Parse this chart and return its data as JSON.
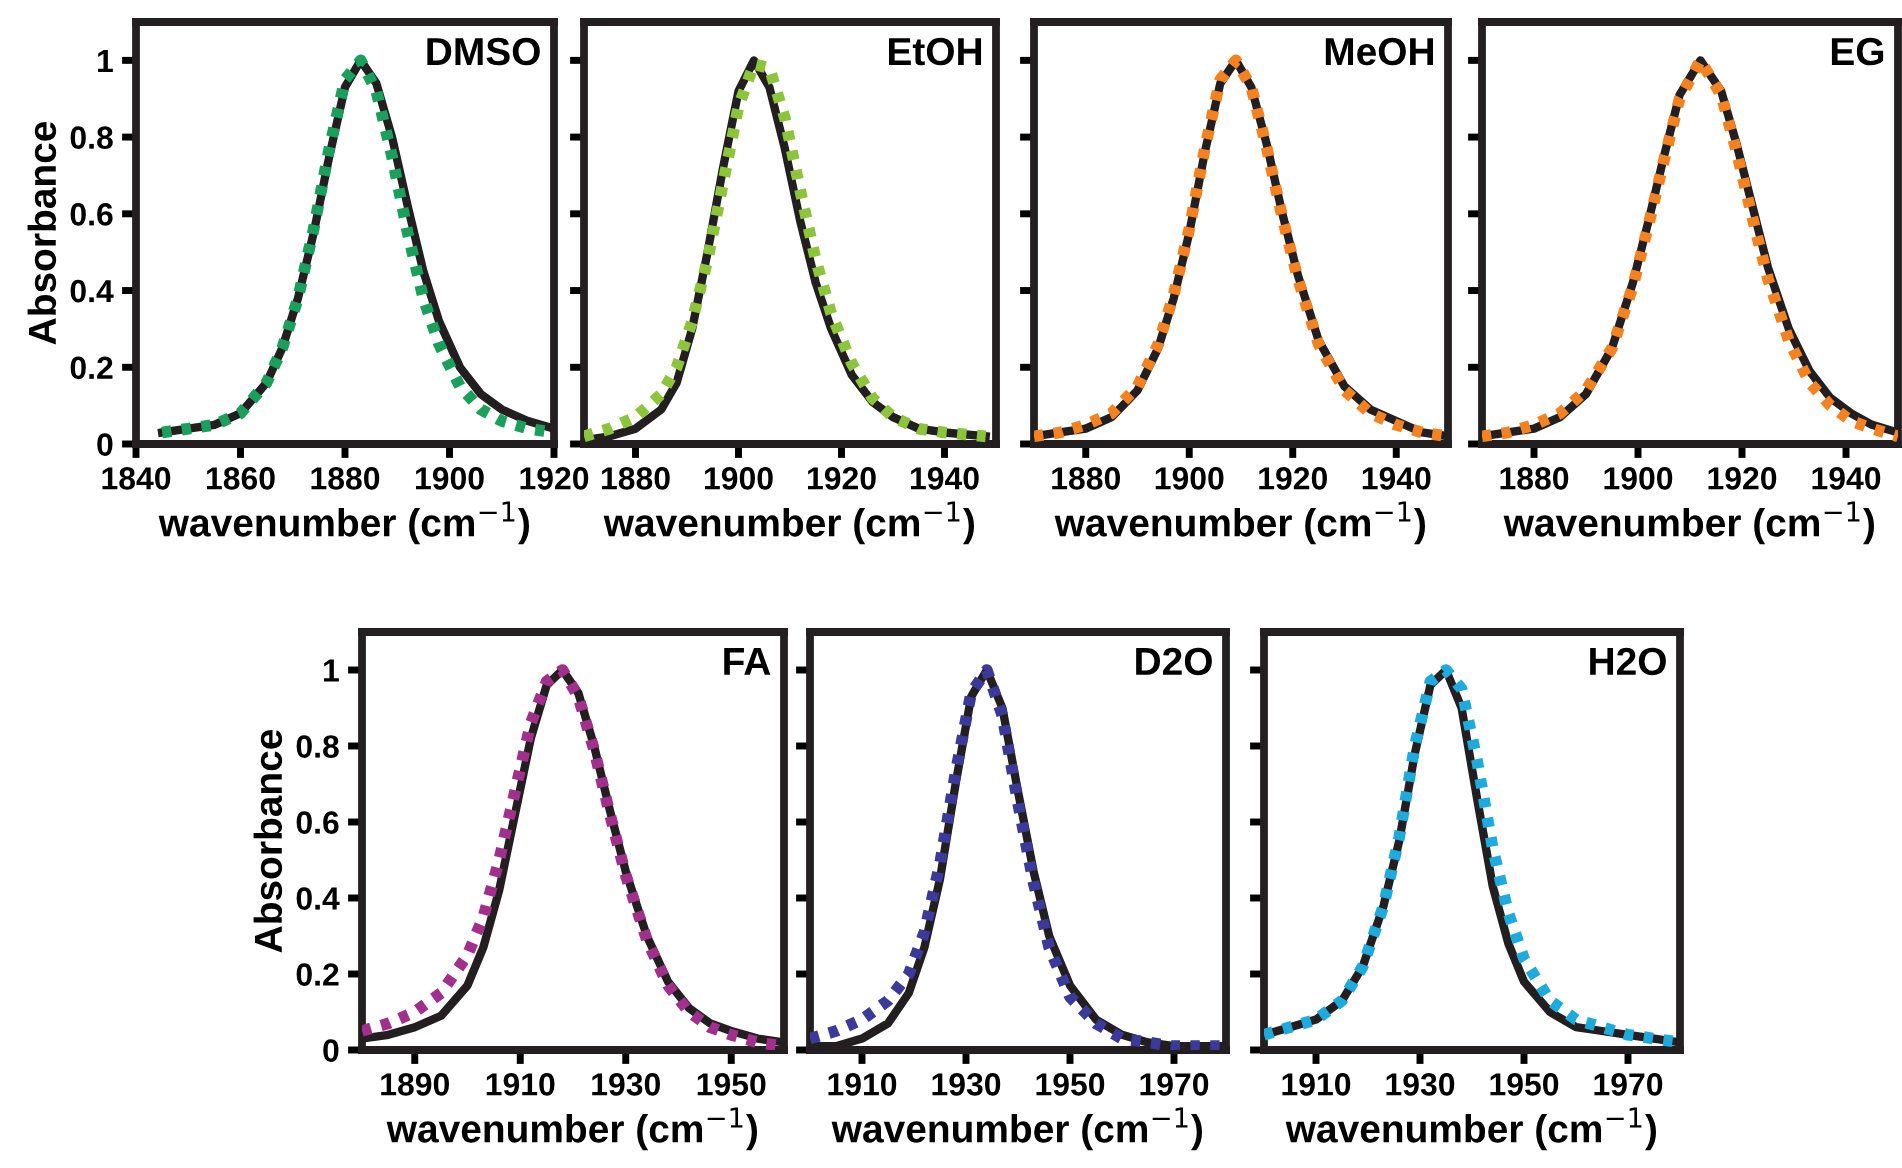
{
  "chart_data": [
    {
      "type": "line",
      "title": "DMSO",
      "xlabel": "wavenumber (cm$^{−1}$)",
      "ylabel": "Absorbance",
      "xlim": [
        1840,
        1920
      ],
      "xticks": [
        1840,
        1860,
        1880,
        1900,
        1920
      ],
      "ylim": [
        0,
        1.1
      ],
      "yticks": [
        0,
        0.2,
        0.4,
        0.6,
        0.8,
        1
      ],
      "x": [
        1845,
        1850,
        1855,
        1860,
        1865,
        1868,
        1871,
        1874,
        1877,
        1880,
        1883,
        1886,
        1889,
        1892,
        1895,
        1898,
        1902,
        1906,
        1910,
        1915,
        1920
      ],
      "series": [
        {
          "color": "#231f20",
          "line_style": "solid",
          "values": [
            0.03,
            0.04,
            0.05,
            0.08,
            0.16,
            0.25,
            0.38,
            0.55,
            0.75,
            0.93,
            1.0,
            0.94,
            0.8,
            0.62,
            0.45,
            0.32,
            0.2,
            0.13,
            0.09,
            0.06,
            0.04
          ]
        },
        {
          "color": "#1aa05a",
          "line_style": "dotted",
          "values": [
            0.03,
            0.04,
            0.05,
            0.08,
            0.16,
            0.25,
            0.38,
            0.56,
            0.77,
            0.95,
            1.0,
            0.92,
            0.75,
            0.55,
            0.38,
            0.26,
            0.15,
            0.09,
            0.06,
            0.04,
            0.03
          ]
        }
      ]
    },
    {
      "type": "line",
      "title": "EtOH",
      "xlabel": "wavenumber (cm$^{−1}$)",
      "xlim": [
        1870,
        1950
      ],
      "xticks": [
        1880,
        1900,
        1920,
        1940
      ],
      "ylim": [
        0,
        1.1
      ],
      "yticks": [
        0,
        0.2,
        0.4,
        0.6,
        0.8,
        1
      ],
      "tick_labels": "x",
      "x": [
        1870,
        1875,
        1880,
        1885,
        1888,
        1891,
        1894,
        1897,
        1900,
        1903,
        1906,
        1909,
        1912,
        1915,
        1918,
        1922,
        1926,
        1930,
        1935,
        1940,
        1948
      ],
      "series": [
        {
          "color": "#231f20",
          "line_style": "solid",
          "values": [
            0.01,
            0.02,
            0.04,
            0.09,
            0.16,
            0.3,
            0.5,
            0.72,
            0.92,
            1.0,
            0.93,
            0.77,
            0.58,
            0.42,
            0.3,
            0.18,
            0.11,
            0.07,
            0.04,
            0.03,
            0.02
          ]
        },
        {
          "color": "#8cc43c",
          "line_style": "dotted",
          "values": [
            0.02,
            0.04,
            0.07,
            0.13,
            0.2,
            0.32,
            0.48,
            0.68,
            0.88,
            0.99,
            0.98,
            0.85,
            0.66,
            0.48,
            0.34,
            0.21,
            0.12,
            0.07,
            0.04,
            0.03,
            0.02
          ]
        }
      ]
    },
    {
      "type": "line",
      "title": "MeOH",
      "xlabel": "wavenumber (cm$^{−1}$)",
      "xlim": [
        1870,
        1950
      ],
      "xticks": [
        1880,
        1900,
        1920,
        1940
      ],
      "ylim": [
        0,
        1.1
      ],
      "yticks": [
        0,
        0.2,
        0.4,
        0.6,
        0.8,
        1
      ],
      "tick_labels": "x",
      "x": [
        1870,
        1875,
        1880,
        1885,
        1890,
        1894,
        1897,
        1900,
        1903,
        1906,
        1909,
        1912,
        1915,
        1918,
        1921,
        1925,
        1930,
        1935,
        1940,
        1945,
        1950
      ],
      "series": [
        {
          "color": "#231f20",
          "line_style": "solid",
          "values": [
            0.02,
            0.03,
            0.04,
            0.07,
            0.14,
            0.25,
            0.38,
            0.55,
            0.76,
            0.94,
            1.0,
            0.93,
            0.78,
            0.6,
            0.44,
            0.27,
            0.15,
            0.09,
            0.06,
            0.03,
            0.02
          ]
        },
        {
          "color": "#f58220",
          "line_style": "dotted",
          "values": [
            0.02,
            0.03,
            0.05,
            0.08,
            0.15,
            0.26,
            0.39,
            0.56,
            0.77,
            0.95,
            1.0,
            0.93,
            0.77,
            0.59,
            0.43,
            0.26,
            0.14,
            0.08,
            0.05,
            0.03,
            0.02
          ]
        }
      ]
    },
    {
      "type": "line",
      "title": "EG",
      "xlabel": "wavenumber (cm$^{−1}$)",
      "xlim": [
        1870,
        1950
      ],
      "xticks": [
        1880,
        1900,
        1920,
        1940
      ],
      "ylim": [
        0,
        1.1
      ],
      "yticks": [
        0,
        0.2,
        0.4,
        0.6,
        0.8,
        1
      ],
      "tick_labels": "x",
      "x": [
        1870,
        1875,
        1880,
        1885,
        1890,
        1895,
        1899,
        1902,
        1905,
        1908,
        1912,
        1916,
        1919,
        1922,
        1925,
        1929,
        1933,
        1937,
        1941,
        1945,
        1950
      ],
      "series": [
        {
          "color": "#231f20",
          "line_style": "solid",
          "values": [
            0.02,
            0.03,
            0.04,
            0.07,
            0.13,
            0.25,
            0.42,
            0.58,
            0.75,
            0.91,
            1.0,
            0.92,
            0.78,
            0.62,
            0.46,
            0.3,
            0.19,
            0.12,
            0.08,
            0.05,
            0.03
          ]
        },
        {
          "color": "#f58220",
          "line_style": "dotted",
          "values": [
            0.02,
            0.03,
            0.05,
            0.08,
            0.14,
            0.25,
            0.41,
            0.57,
            0.74,
            0.9,
            1.0,
            0.91,
            0.76,
            0.59,
            0.43,
            0.27,
            0.16,
            0.1,
            0.06,
            0.04,
            0.02
          ]
        }
      ]
    },
    {
      "type": "line",
      "title": "FA",
      "xlabel": "wavenumber (cm$^{−1}$)",
      "ylabel": "Absorbance",
      "xlim": [
        1880,
        1960
      ],
      "xticks": [
        1890,
        1910,
        1930,
        1950
      ],
      "ylim": [
        0,
        1.1
      ],
      "yticks": [
        0,
        0.2,
        0.4,
        0.6,
        0.8,
        1
      ],
      "x": [
        1880,
        1885,
        1890,
        1895,
        1900,
        1903,
        1906,
        1909,
        1912,
        1915,
        1918,
        1921,
        1924,
        1927,
        1930,
        1934,
        1938,
        1942,
        1946,
        1950,
        1955,
        1960
      ],
      "series": [
        {
          "color": "#231f20",
          "line_style": "solid",
          "values": [
            0.03,
            0.04,
            0.06,
            0.09,
            0.17,
            0.27,
            0.42,
            0.62,
            0.82,
            0.96,
            1.0,
            0.94,
            0.8,
            0.63,
            0.47,
            0.3,
            0.18,
            0.11,
            0.07,
            0.05,
            0.03,
            0.02
          ]
        },
        {
          "color": "#a0308c",
          "line_style": "dotted",
          "values": [
            0.05,
            0.07,
            0.1,
            0.15,
            0.25,
            0.35,
            0.5,
            0.68,
            0.86,
            0.97,
            1.0,
            0.93,
            0.79,
            0.62,
            0.46,
            0.29,
            0.17,
            0.1,
            0.06,
            0.04,
            0.02,
            0.01
          ]
        }
      ]
    },
    {
      "type": "line",
      "title": "D2O",
      "xlabel": "wavenumber (cm$^{−1}$)",
      "xlim": [
        1900,
        1980
      ],
      "xticks": [
        1910,
        1930,
        1950,
        1970
      ],
      "ylim": [
        0,
        1.1
      ],
      "yticks": [
        0,
        0.2,
        0.4,
        0.6,
        0.8,
        1
      ],
      "tick_labels": "x",
      "x": [
        1900,
        1905,
        1910,
        1915,
        1919,
        1922,
        1925,
        1928,
        1931,
        1934,
        1937,
        1940,
        1943,
        1946,
        1950,
        1955,
        1960,
        1965,
        1970,
        1975,
        1980
      ],
      "series": [
        {
          "color": "#231f20",
          "line_style": "solid",
          "values": [
            0.01,
            0.01,
            0.03,
            0.07,
            0.15,
            0.27,
            0.45,
            0.7,
            0.93,
            1.0,
            0.9,
            0.68,
            0.47,
            0.3,
            0.17,
            0.08,
            0.04,
            0.02,
            0.01,
            0.01,
            0.01
          ]
        },
        {
          "color": "#3a3a9a",
          "line_style": "dotted",
          "values": [
            0.03,
            0.05,
            0.08,
            0.13,
            0.2,
            0.31,
            0.49,
            0.73,
            0.94,
            1.0,
            0.88,
            0.65,
            0.44,
            0.27,
            0.14,
            0.07,
            0.03,
            0.02,
            0.01,
            0.01,
            0.01
          ]
        }
      ]
    },
    {
      "type": "line",
      "title": "H2O",
      "xlabel": "wavenumber (cm$^{−1}$)",
      "xlim": [
        1900,
        1980
      ],
      "xticks": [
        1910,
        1930,
        1950,
        1970
      ],
      "ylim": [
        0,
        1.1
      ],
      "yticks": [
        0,
        0.2,
        0.4,
        0.6,
        0.8,
        1
      ],
      "tick_labels": "x",
      "x": [
        1900,
        1905,
        1910,
        1915,
        1919,
        1923,
        1926,
        1929,
        1932,
        1935,
        1938,
        1941,
        1944,
        1947,
        1950,
        1955,
        1960,
        1965,
        1970,
        1975,
        1980
      ],
      "series": [
        {
          "color": "#231f20",
          "line_style": "solid",
          "values": [
            0.04,
            0.06,
            0.08,
            0.13,
            0.22,
            0.38,
            0.55,
            0.78,
            0.96,
            1.0,
            0.9,
            0.66,
            0.43,
            0.28,
            0.18,
            0.1,
            0.06,
            0.05,
            0.04,
            0.03,
            0.02
          ]
        },
        {
          "color": "#1eaadc",
          "line_style": "dotted",
          "values": [
            0.04,
            0.06,
            0.08,
            0.13,
            0.22,
            0.38,
            0.56,
            0.8,
            0.97,
            1.0,
            0.95,
            0.76,
            0.53,
            0.36,
            0.24,
            0.13,
            0.08,
            0.06,
            0.04,
            0.03,
            0.02
          ]
        }
      ]
    }
  ]
}
